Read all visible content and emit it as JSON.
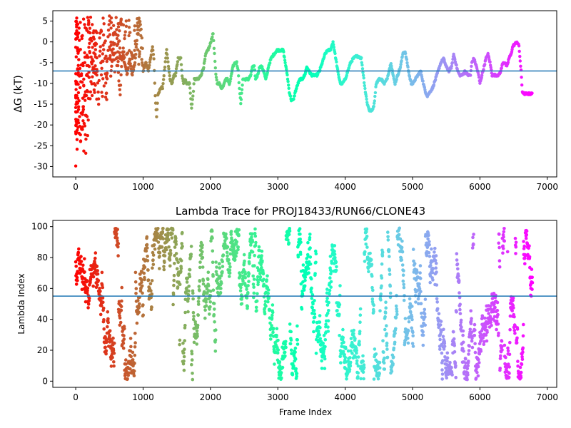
{
  "chart_data": [
    {
      "type": "scatter",
      "title": "",
      "xlabel": "",
      "ylabel": "ΔG (kT)",
      "xlim": [
        -340,
        7140
      ],
      "ylim": [
        -32.5,
        7.5
      ],
      "xticks": [
        0,
        1000,
        2000,
        3000,
        4000,
        5000,
        6000,
        7000
      ],
      "yticks": [
        5,
        0,
        -5,
        -10,
        -15,
        -20,
        -25,
        -30
      ],
      "colormap": "rainbow (red at frame 0 to purple at frame 6780)",
      "hline": -7,
      "hline_color": "#1f77b4",
      "grid": false,
      "legend": "none",
      "trace": [
        [
          0,
          -30
        ],
        [
          5,
          -10
        ],
        [
          10,
          2
        ],
        [
          15,
          6
        ],
        [
          20,
          -26
        ],
        [
          25,
          -17
        ],
        [
          30,
          4
        ],
        [
          35,
          -8
        ],
        [
          40,
          -12
        ],
        [
          50,
          3
        ],
        [
          60,
          -20
        ],
        [
          70,
          -2
        ],
        [
          80,
          -17
        ],
        [
          90,
          1
        ],
        [
          100,
          -21
        ],
        [
          110,
          -6
        ],
        [
          120,
          -26
        ],
        [
          130,
          -13
        ],
        [
          140,
          3
        ],
        [
          150,
          -27
        ],
        [
          160,
          -8
        ],
        [
          170,
          -4
        ],
        [
          180,
          -12
        ],
        [
          190,
          4
        ],
        [
          200,
          -6
        ],
        [
          220,
          6
        ],
        [
          240,
          -10
        ],
        [
          260,
          -5
        ],
        [
          280,
          -12
        ],
        [
          300,
          3
        ],
        [
          320,
          -7
        ],
        [
          340,
          -15
        ],
        [
          360,
          2
        ],
        [
          380,
          -8
        ],
        [
          400,
          -3
        ],
        [
          420,
          4
        ],
        [
          440,
          -8
        ],
        [
          460,
          -14
        ],
        [
          480,
          1
        ],
        [
          500,
          6
        ],
        [
          520,
          -8
        ],
        [
          540,
          -5
        ],
        [
          560,
          2
        ],
        [
          580,
          -7
        ],
        [
          600,
          6
        ],
        [
          620,
          -4
        ],
        [
          640,
          -9
        ],
        [
          660,
          -13
        ],
        [
          680,
          -6
        ],
        [
          700,
          -2
        ],
        [
          720,
          -5
        ],
        [
          740,
          -6
        ],
        [
          760,
          -8
        ],
        [
          780,
          -6
        ],
        [
          800,
          -4
        ],
        [
          840,
          -8
        ],
        [
          880,
          -5
        ],
        [
          920,
          3
        ],
        [
          940,
          6
        ],
        [
          960,
          4
        ],
        [
          980,
          -4
        ],
        [
          1000,
          -7
        ],
        [
          1040,
          -5
        ],
        [
          1080,
          -7
        ],
        [
          1100,
          -5
        ],
        [
          1120,
          -3
        ],
        [
          1140,
          -1
        ],
        [
          1160,
          -4
        ],
        [
          1180,
          -13
        ],
        [
          1200,
          -18
        ],
        [
          1220,
          -13
        ],
        [
          1240,
          -12
        ],
        [
          1260,
          -11
        ],
        [
          1290,
          -11
        ],
        [
          1310,
          -8
        ],
        [
          1330,
          -5
        ],
        [
          1350,
          -2
        ],
        [
          1370,
          -5
        ],
        [
          1400,
          -9
        ],
        [
          1430,
          -10
        ],
        [
          1460,
          -8
        ],
        [
          1480,
          -8
        ],
        [
          1500,
          -6
        ],
        [
          1520,
          -4
        ],
        [
          1560,
          -4
        ],
        [
          1580,
          -8
        ],
        [
          1600,
          -10
        ],
        [
          1620,
          -9
        ],
        [
          1650,
          -10
        ],
        [
          1690,
          -10
        ],
        [
          1720,
          -16
        ],
        [
          1740,
          -13
        ],
        [
          1760,
          -9
        ],
        [
          1790,
          -9
        ],
        [
          1820,
          -9
        ],
        [
          1860,
          -8
        ],
        [
          1900,
          -6
        ],
        [
          1930,
          -3
        ],
        [
          1960,
          -2
        ],
        [
          1990,
          -1
        ],
        [
          2020,
          1
        ],
        [
          2040,
          2
        ],
        [
          2060,
          -3
        ],
        [
          2080,
          -8
        ],
        [
          2100,
          -10
        ],
        [
          2130,
          -10
        ],
        [
          2160,
          -11
        ],
        [
          2180,
          -11
        ],
        [
          2220,
          -9
        ],
        [
          2250,
          -9
        ],
        [
          2280,
          -10
        ],
        [
          2300,
          -9
        ],
        [
          2330,
          -6
        ],
        [
          2360,
          -5
        ],
        [
          2390,
          -5
        ],
        [
          2410,
          -7
        ],
        [
          2430,
          -11
        ],
        [
          2450,
          -15
        ],
        [
          2480,
          -9
        ],
        [
          2520,
          -9
        ],
        [
          2560,
          -9
        ],
        [
          2600,
          -8
        ],
        [
          2620,
          -6
        ],
        [
          2650,
          -6
        ],
        [
          2670,
          -9
        ],
        [
          2700,
          -8
        ],
        [
          2730,
          -6
        ],
        [
          2760,
          -6
        ],
        [
          2790,
          -7
        ],
        [
          2820,
          -9
        ],
        [
          2840,
          -8
        ],
        [
          2860,
          -6
        ],
        [
          2900,
          -4
        ],
        [
          2940,
          -3
        ],
        [
          2990,
          -2
        ],
        [
          3040,
          -2
        ],
        [
          3080,
          -2
        ],
        [
          3110,
          -5
        ],
        [
          3140,
          -8
        ],
        [
          3170,
          -12
        ],
        [
          3200,
          -14
        ],
        [
          3230,
          -14
        ],
        [
          3260,
          -12
        ],
        [
          3300,
          -10
        ],
        [
          3330,
          -9
        ],
        [
          3360,
          -9
        ],
        [
          3400,
          -8
        ],
        [
          3430,
          -6
        ],
        [
          3460,
          -7
        ],
        [
          3500,
          -8
        ],
        [
          3540,
          -8
        ],
        [
          3580,
          -8
        ],
        [
          3620,
          -7
        ],
        [
          3660,
          -5
        ],
        [
          3700,
          -3
        ],
        [
          3740,
          -2
        ],
        [
          3780,
          -2
        ],
        [
          3820,
          0
        ],
        [
          3850,
          -3
        ],
        [
          3870,
          -5
        ],
        [
          3900,
          -8
        ],
        [
          3930,
          -10
        ],
        [
          3960,
          -10
        ],
        [
          4000,
          -9
        ],
        [
          4040,
          -7
        ],
        [
          4080,
          -5
        ],
        [
          4120,
          -4
        ],
        [
          4160,
          -3.5
        ],
        [
          4200,
          -3.5
        ],
        [
          4240,
          -4
        ],
        [
          4270,
          -8
        ],
        [
          4300,
          -12
        ],
        [
          4330,
          -15
        ],
        [
          4360,
          -16.5
        ],
        [
          4400,
          -16.5
        ],
        [
          4430,
          -15
        ],
        [
          4460,
          -10
        ],
        [
          4500,
          -9
        ],
        [
          4540,
          -9
        ],
        [
          4580,
          -10
        ],
        [
          4620,
          -9
        ],
        [
          4650,
          -7
        ],
        [
          4680,
          -5
        ],
        [
          4710,
          -8
        ],
        [
          4740,
          -10
        ],
        [
          4780,
          -8
        ],
        [
          4820,
          -6
        ],
        [
          4860,
          -2.5
        ],
        [
          4890,
          -2.5
        ],
        [
          4920,
          -5
        ],
        [
          4950,
          -8
        ],
        [
          4980,
          -10
        ],
        [
          5010,
          -10
        ],
        [
          5040,
          -9
        ],
        [
          5080,
          -8
        ],
        [
          5120,
          -7
        ],
        [
          5160,
          -10
        ],
        [
          5190,
          -12
        ],
        [
          5220,
          -13
        ],
        [
          5260,
          -12
        ],
        [
          5300,
          -11
        ],
        [
          5340,
          -9
        ],
        [
          5380,
          -7
        ],
        [
          5420,
          -5
        ],
        [
          5460,
          -4
        ],
        [
          5500,
          -6
        ],
        [
          5540,
          -7
        ],
        [
          5580,
          -6
        ],
        [
          5610,
          -3
        ],
        [
          5640,
          -5
        ],
        [
          5670,
          -7
        ],
        [
          5700,
          -8
        ],
        [
          5740,
          -8
        ],
        [
          5780,
          -7
        ],
        [
          5820,
          -8
        ],
        [
          5860,
          -8
        ],
        [
          5880,
          -5
        ],
        [
          5910,
          -4
        ],
        [
          5950,
          -6
        ],
        [
          5980,
          -8
        ],
        [
          6000,
          -10
        ],
        [
          6030,
          -8
        ],
        [
          6060,
          -6
        ],
        [
          6090,
          -4
        ],
        [
          6120,
          -3
        ],
        [
          6150,
          -5
        ],
        [
          6180,
          -8
        ],
        [
          6210,
          -8
        ],
        [
          6240,
          -8
        ],
        [
          6280,
          -8
        ],
        [
          6310,
          -7
        ],
        [
          6340,
          -5
        ],
        [
          6370,
          -5
        ],
        [
          6400,
          -6
        ],
        [
          6430,
          -4
        ],
        [
          6460,
          -3
        ],
        [
          6490,
          -1
        ],
        [
          6520,
          -0.5
        ],
        [
          6550,
          0
        ],
        [
          6580,
          -1
        ],
        [
          6610,
          -7
        ],
        [
          6630,
          -12
        ],
        [
          6660,
          -12.5
        ],
        [
          6700,
          -12.5
        ],
        [
          6740,
          -12.5
        ],
        [
          6780,
          -12.5
        ]
      ]
    },
    {
      "type": "scatter",
      "title": "Lambda Trace for PROJ18433/RUN66/CLONE43",
      "xlabel": "Frame Index",
      "ylabel": "Lambda Index",
      "xlim": [
        -340,
        7140
      ],
      "ylim": [
        -4,
        104
      ],
      "xticks": [
        0,
        1000,
        2000,
        3000,
        4000,
        5000,
        6000,
        7000
      ],
      "yticks": [
        0,
        20,
        40,
        60,
        80,
        100
      ],
      "colormap": "rainbow (red at frame 0 to purple at frame 6780)",
      "hline": 55,
      "hline_color": "#1f77b4",
      "grid": false,
      "legend": "none",
      "frame_range": [
        0,
        6780
      ],
      "lambda_range": [
        1,
        99
      ]
    }
  ]
}
